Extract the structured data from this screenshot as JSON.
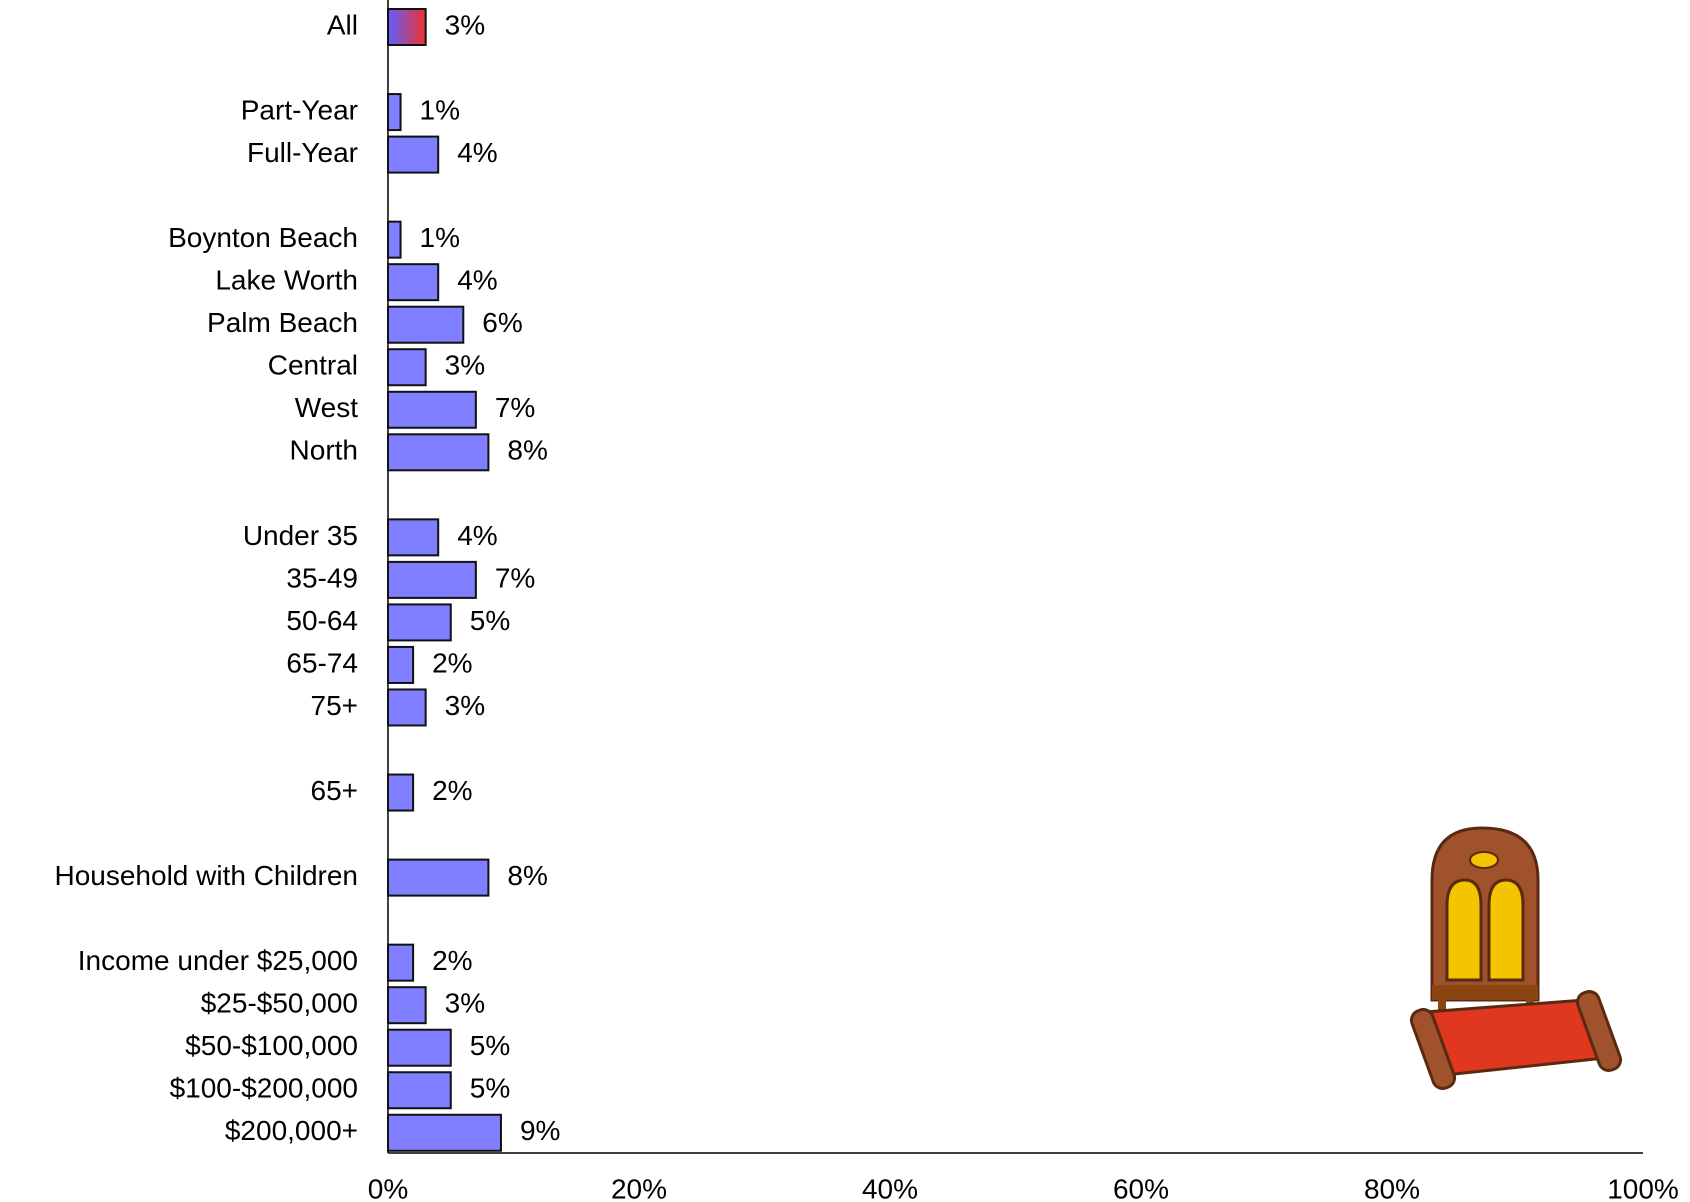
{
  "chart_data": {
    "type": "hbar",
    "categories": [
      "All",
      null,
      "Part-Year",
      "Full-Year",
      null,
      "Boynton Beach",
      "Lake Worth",
      "Palm Beach",
      "Central",
      "West",
      "North",
      null,
      "Under 35",
      "35-49",
      "50-64",
      "65-74",
      "75+",
      null,
      "65+",
      null,
      "Household with Children",
      null,
      "Income under $25,000",
      "$25-$50,000",
      "$50-$100,000",
      "$100-$200,000",
      "$200,000+"
    ],
    "values": [
      3,
      null,
      1,
      4,
      null,
      1,
      4,
      6,
      3,
      7,
      8,
      null,
      4,
      7,
      5,
      2,
      3,
      null,
      2,
      null,
      8,
      null,
      2,
      3,
      5,
      5,
      9
    ],
    "value_labels": [
      "3%",
      null,
      "1%",
      "4%",
      null,
      "1%",
      "4%",
      "6%",
      "3%",
      "7%",
      "8%",
      null,
      "4%",
      "7%",
      "5%",
      "2%",
      "3%",
      null,
      "2%",
      null,
      "8%",
      null,
      "2%",
      "3%",
      "5%",
      "5%",
      "9%"
    ],
    "color": "#7f7fff",
    "highlight_gradient": [
      "#6060ff",
      "#ee3030"
    ],
    "xlim": [
      0,
      100
    ],
    "xticks": [
      {
        "value": 0,
        "label": "0%"
      },
      {
        "value": 20,
        "label": "20%"
      },
      {
        "value": 40,
        "label": "40%"
      },
      {
        "value": 60,
        "label": "60%"
      },
      {
        "value": 80,
        "label": "80%"
      },
      {
        "value": 100,
        "label": "100%"
      }
    ]
  }
}
